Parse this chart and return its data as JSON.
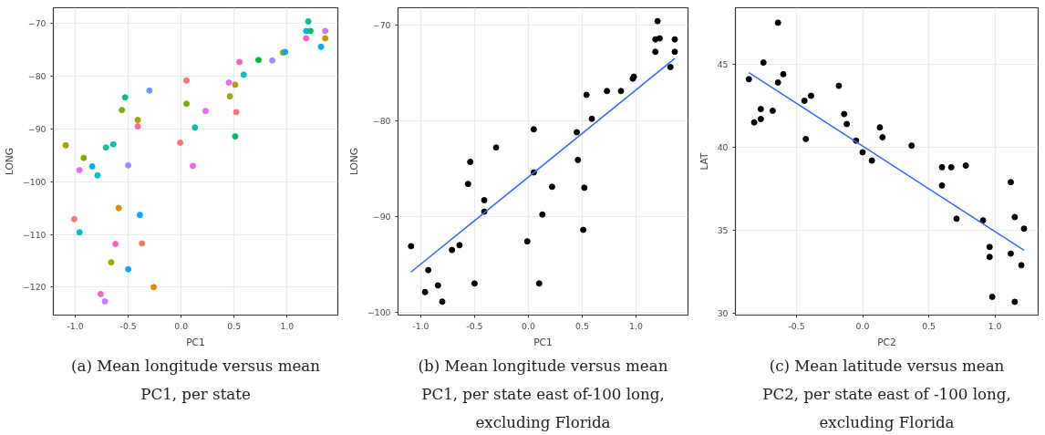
{
  "chart_data": [
    {
      "type": "scatter",
      "title": "(a) Mean longitude versus mean PC1, per state",
      "xlabel": "PC1",
      "ylabel": "LONG",
      "marker": "circle",
      "grid": true,
      "xlim": [
        -1.207,
        1.479
      ],
      "ylim": [
        -125.3,
        -67.0
      ],
      "xticks": [
        {
          "value": -1.0,
          "label": "-1.0"
        },
        {
          "value": -0.5,
          "label": "-0.5"
        },
        {
          "value": 0.0,
          "label": "0.0"
        },
        {
          "value": 0.5,
          "label": "0.5"
        },
        {
          "value": 1.0,
          "label": "1.0"
        }
      ],
      "yticks": [
        -120,
        -110,
        -100,
        -90,
        -80,
        -70
      ],
      "x": [
        1.2,
        1.18,
        1.22,
        1.36,
        1.18,
        1.36,
        1.32,
        0.96,
        0.98,
        0.73,
        0.86,
        0.55,
        0.59,
        0.05,
        0.45,
        0.51,
        -0.3,
        0.46,
        -0.53,
        0.05,
        -0.56,
        0.23,
        0.52,
        -0.41,
        -0.41,
        0.13,
        0.51,
        -0.01,
        -1.09,
        -0.64,
        -0.71,
        -0.92,
        -0.84,
        -0.5,
        0.11,
        -0.96,
        -0.79,
        -0.59,
        -0.39,
        -1.01,
        -0.96,
        -0.62,
        -0.37,
        -0.66,
        -0.5,
        -0.26,
        -0.76,
        -0.72
      ],
      "values": [
        -69.6,
        -71.4,
        -71.4,
        -71.4,
        -72.8,
        -72.8,
        -74.4,
        -75.5,
        -75.4,
        -76.9,
        -77.0,
        -77.3,
        -79.7,
        -80.8,
        -81.2,
        -81.6,
        -82.7,
        -83.8,
        -84.0,
        -85.2,
        -86.4,
        -86.6,
        -86.8,
        -88.3,
        -89.5,
        -89.7,
        -91.4,
        -92.6,
        -93.1,
        -92.9,
        -93.5,
        -95.5,
        -97.1,
        -96.9,
        -97.0,
        -97.8,
        -98.8,
        -105.0,
        -106.3,
        -107.1,
        -109.6,
        -111.8,
        -111.7,
        -115.3,
        -116.6,
        -120.0,
        -121.3,
        -122.7
      ],
      "colors": [
        "#00c08b",
        "#00b4f0",
        "#00be67",
        "#c77cff",
        "#ff61c3",
        "#cd9600",
        "#00a9ff",
        "#b79f00",
        "#00a9ff",
        "#00ba38",
        "#9590ff",
        "#ff62bc",
        "#00bfc4",
        "#fc717f",
        "#e76bf3",
        "#b79f00",
        "#619cff",
        "#a3a500",
        "#00bf7d",
        "#7cae00",
        "#7cae00",
        "#e76bf3",
        "#f8766d",
        "#a3a500",
        "#ff6a98",
        "#00c1aa",
        "#00be67",
        "#f8766d",
        "#a3a500",
        "#00c0af",
        "#00c08b",
        "#7cae00",
        "#00b0f6",
        "#8f91ff",
        "#f564e3",
        "#e76bf3",
        "#00bcd8",
        "#d89000",
        "#00a9ff",
        "#f8766d",
        "#00bfc4",
        "#ff61c3",
        "#f07f57",
        "#a3a500",
        "#00a9ff",
        "#e58700",
        "#ff61c3",
        "#c77cff"
      ]
    },
    {
      "type": "scatter",
      "title": "(b) Mean longitude versus mean PC1, per state east of-100 long, excluding Florida",
      "xlabel": "PC1",
      "ylabel": "LONG",
      "marker": "circle",
      "grid": true,
      "xlim": [
        -1.211,
        1.483
      ],
      "ylim": [
        -100.3,
        -68.2
      ],
      "xticks": [
        {
          "value": -1.0,
          "label": "-1.0"
        },
        {
          "value": -0.5,
          "label": "-0.5"
        },
        {
          "value": 0.0,
          "label": "0.0"
        },
        {
          "value": 0.5,
          "label": "0.5"
        },
        {
          "value": 1.0,
          "label": "1.0"
        }
      ],
      "yticks": [
        -100,
        -90,
        -80,
        -70
      ],
      "series": [
        {
          "color": "#000000",
          "x": [
            1.2,
            1.18,
            1.22,
            1.36,
            1.18,
            1.36,
            1.32,
            0.97,
            0.98,
            0.73,
            0.86,
            0.54,
            0.59,
            0.05,
            0.45,
            -0.3,
            0.46,
            -0.54,
            0.05,
            -0.56,
            0.22,
            0.52,
            -0.41,
            -0.41,
            0.13,
            0.51,
            -0.01,
            -1.09,
            -0.64,
            -0.71,
            -0.93,
            -0.84,
            -0.5,
            0.1,
            -0.96,
            -0.8
          ],
          "values": [
            -69.6,
            -71.5,
            -71.4,
            -71.5,
            -72.8,
            -72.8,
            -74.4,
            -75.6,
            -75.4,
            -76.9,
            -76.9,
            -77.3,
            -79.8,
            -80.9,
            -81.2,
            -82.8,
            -84.1,
            -84.3,
            -85.4,
            -86.6,
            -86.9,
            -87.0,
            -88.3,
            -89.5,
            -89.8,
            -91.4,
            -92.6,
            -93.1,
            -93.0,
            -93.5,
            -95.6,
            -97.2,
            -97.0,
            -97.0,
            -97.9,
            -98.9
          ]
        },
        {
          "type": "line",
          "marker": "none",
          "color": "#3366ff",
          "x": [
            -1.09,
            1.36
          ],
          "values": [
            -95.8,
            -73.5
          ]
        }
      ]
    },
    {
      "type": "scatter",
      "title": "(c) Mean latitude versus mean PC2, per state east of -100 long, excluding Florida",
      "xlabel": "PC2",
      "ylabel": "LAT",
      "marker": "circle",
      "grid": true,
      "xlim": [
        -0.962,
        1.327
      ],
      "ylim": [
        29.9,
        48.4
      ],
      "xticks": [
        {
          "value": -0.5,
          "label": "-0.5"
        },
        {
          "value": 0.0,
          "label": "0.0"
        },
        {
          "value": 0.5,
          "label": "0.5"
        },
        {
          "value": 1.0,
          "label": "1.0"
        }
      ],
      "yticks": [
        30,
        35,
        40,
        45
      ],
      "series": [
        {
          "color": "#000000",
          "x": [
            -0.64,
            -0.75,
            -0.86,
            -0.6,
            -0.64,
            -0.18,
            -0.39,
            -0.44,
            -0.77,
            -0.68,
            -0.77,
            -0.82,
            -0.14,
            -0.12,
            -0.43,
            0.13,
            0.15,
            -0.05,
            0.37,
            0.0,
            0.07,
            0.6,
            0.67,
            0.78,
            0.6,
            1.12,
            0.71,
            0.91,
            1.15,
            1.22,
            0.96,
            0.96,
            1.12,
            1.2,
            0.98,
            1.15
          ],
          "values": [
            47.5,
            45.1,
            44.1,
            44.4,
            43.9,
            43.7,
            43.1,
            42.8,
            42.3,
            42.2,
            41.7,
            41.5,
            42.0,
            41.4,
            40.5,
            41.2,
            40.6,
            40.4,
            40.1,
            39.7,
            39.2,
            38.8,
            38.8,
            38.9,
            37.7,
            37.9,
            35.7,
            35.6,
            35.8,
            35.1,
            34.0,
            33.4,
            33.6,
            32.9,
            31.0,
            30.7
          ]
        },
        {
          "type": "line",
          "marker": "none",
          "color": "#3366ff",
          "x": [
            -0.86,
            1.22
          ],
          "values": [
            44.5,
            33.8
          ]
        }
      ]
    }
  ]
}
